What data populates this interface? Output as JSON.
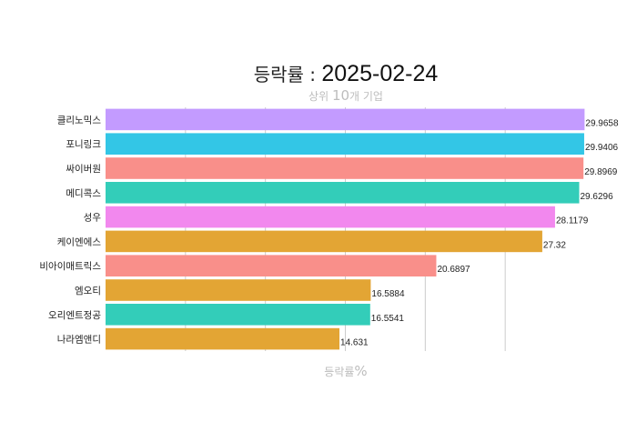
{
  "chart_data": {
    "type": "bar",
    "orientation": "horizontal",
    "title": {
      "label": "등락률 : ",
      "date": "2025-02-24"
    },
    "subtitle": {
      "prefix": "상위 ",
      "number": "10",
      "suffix": "개 기업"
    },
    "xlabel": {
      "text": "등락률",
      "unit": "%"
    },
    "ylabel": "",
    "xlim": [
      0,
      30
    ],
    "grid": true,
    "legend": "none",
    "categories": [
      "클리노믹스",
      "포니링크",
      "싸이버원",
      "메디콕스",
      "성우",
      "케이엔에스",
      "비아이매트릭스",
      "엠오티",
      "오리엔트정공",
      "나라엠앤디"
    ],
    "values": [
      29.9658,
      29.9406,
      29.8969,
      29.6296,
      28.1179,
      27.32,
      20.6897,
      16.5884,
      16.5541,
      14.631
    ],
    "value_labels": [
      "29.9658",
      "29.9406",
      "29.8969",
      "29.6296",
      "28.1179",
      "27.32",
      "20.6897",
      "16.5884",
      "16.5541",
      "14.631"
    ],
    "colors": [
      "#c39bff",
      "#33c6e6",
      "#f98f8a",
      "#33cdb9",
      "#f288ee",
      "#e3a534",
      "#f98f8a",
      "#e3a534",
      "#33cdb9",
      "#e3a534"
    ]
  }
}
